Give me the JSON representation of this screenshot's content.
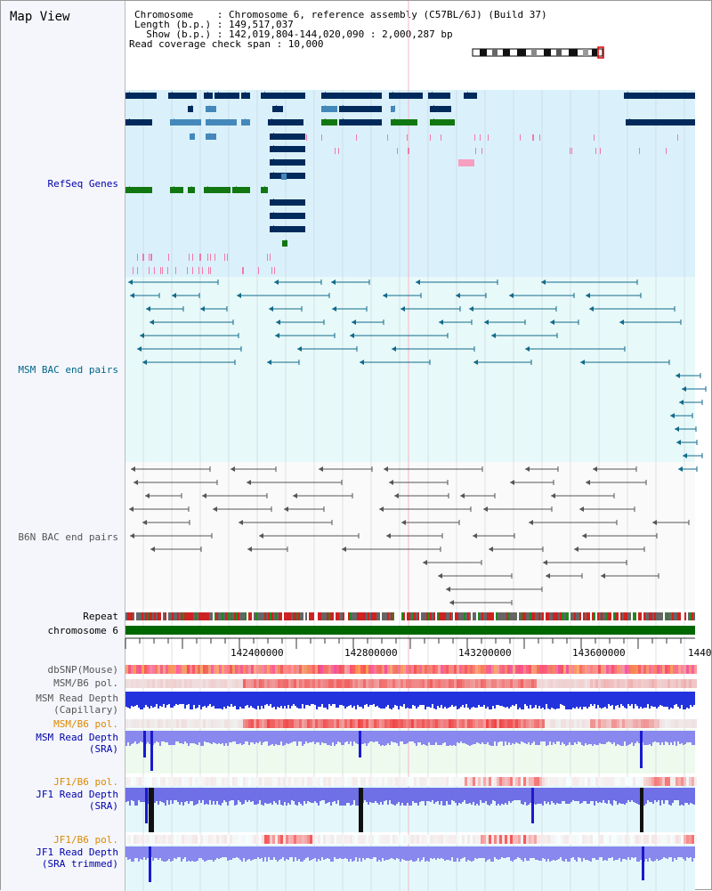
{
  "header": {
    "title": "Map View",
    "chromosome_line": "Chromosome    : Chromosome 6, reference assembly (C57BL/6J) (Build 37)",
    "length_line": "Length (b.p.) : 149,517,037",
    "show_line": "  Show (b.p.) : 142,019,804-144,020,090 : 2,000,287 bp",
    "coverage_line": "Read coverage check span : 10,000"
  },
  "tracks": {
    "refseq": "RefSeq Genes",
    "msm_bac": "MSM BAC end pairs",
    "b6n_bac": "B6N BAC end pairs",
    "repeat": "Repeat",
    "chromosome": "chromosome 6",
    "dbsnp": "dbSNP(Mouse)",
    "msm_b6_pol_1": "MSM/B6 pol.",
    "msm_read_capillary_1": "MSM Read Depth",
    "msm_read_capillary_2": "(Capillary)",
    "msm_b6_pol_2": "MSM/B6 pol.",
    "msm_read_sra_1": "MSM Read Depth",
    "msm_read_sra_2": "(SRA)",
    "jf1_b6_pol_1": "JF1/B6 pol.",
    "jf1_read_sra_1": "JF1 Read Depth",
    "jf1_read_sra_2": "(SRA)",
    "jf1_b6_pol_2": "JF1/B6 pol.",
    "jf1_read_trim_1": "JF1 Read Depth",
    "jf1_read_trim_2": "(SRA trimmed)"
  },
  "axis": {
    "ticks": [
      "142400000",
      "142800000",
      "143200000",
      "143600000",
      "1440"
    ]
  },
  "colors": {
    "refseq_label": "#0000aa",
    "msm_label": "#006688",
    "b6n_label": "#555555",
    "pol_label": "#dd8800",
    "chrom_green": "#006600",
    "gene_dark": "#002a5c",
    "gene_blue": "#4488bb",
    "gene_green": "#117711"
  }
}
